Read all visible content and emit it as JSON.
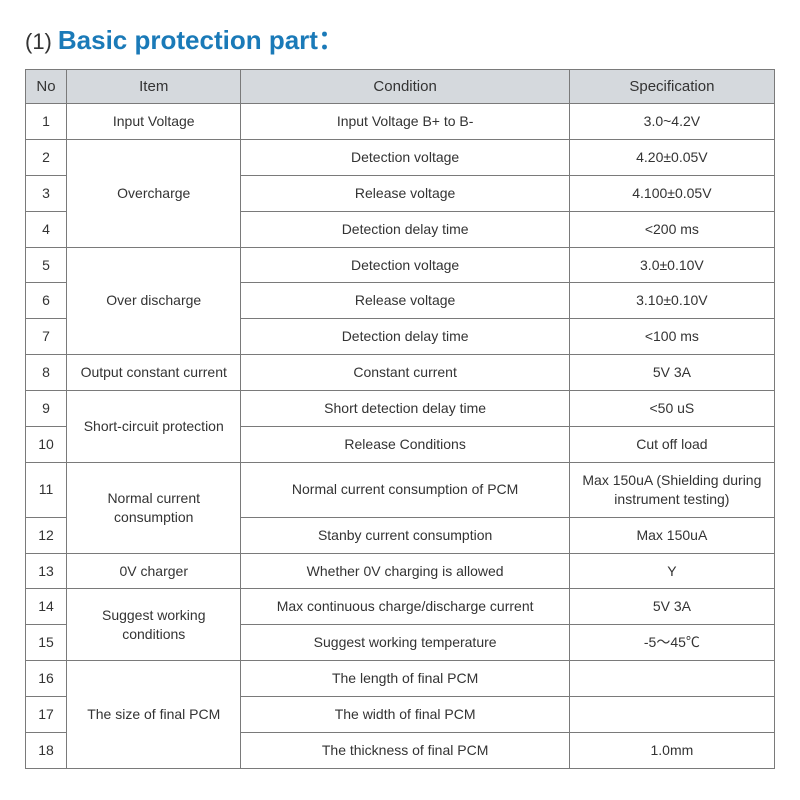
{
  "title_prefix": "(1)",
  "title": "Basic protection part：",
  "title_color": "#1a7ab8",
  "header_bg": "#d5d9dd",
  "border_color": "#7a7a7a",
  "columns": [
    "No",
    "Item",
    "Condition",
    "Specification"
  ],
  "rows": [
    {
      "no": "1",
      "item": "Input Voltage",
      "cond": "Input Voltage B+ to B-",
      "spec": "3.0~4.2V"
    },
    {
      "no": "2",
      "item": "",
      "cond": "Detection voltage",
      "spec": "4.20±0.05V"
    },
    {
      "no": "3",
      "item": "Overcharge",
      "cond": "Release voltage",
      "spec": "4.100±0.05V"
    },
    {
      "no": "4",
      "item": "",
      "cond": "Detection delay time",
      "spec": "<200 ms"
    },
    {
      "no": "5",
      "item": "",
      "cond": "Detection voltage",
      "spec": "3.0±0.10V"
    },
    {
      "no": "6",
      "item": "Over discharge",
      "cond": "Release voltage",
      "spec": "3.10±0.10V"
    },
    {
      "no": "7",
      "item": "",
      "cond": "Detection delay time",
      "spec": "<100 ms"
    },
    {
      "no": "8",
      "item": "Output  constant current",
      "cond": "Constant current",
      "spec": "5V 3A"
    },
    {
      "no": "9",
      "item": "",
      "cond": "Short detection delay time",
      "spec": "<50 uS"
    },
    {
      "no": "10",
      "item": "Short-circuit protection",
      "cond": "Release Conditions",
      "spec": "Cut off load"
    },
    {
      "no": "11",
      "item": "",
      "cond": "Normal current consumption of PCM",
      "spec": "Max 150uA (Shielding during instrument testing)"
    },
    {
      "no": "12",
      "item": "Normal current consumption",
      "cond": "Stanby current consumption",
      "spec": "Max 150uA"
    },
    {
      "no": "13",
      "item": "0V charger",
      "cond": "Whether 0V charging is allowed",
      "spec": "Y"
    },
    {
      "no": "14",
      "item": "",
      "cond": "Max continuous charge/discharge current",
      "spec": "5V 3A"
    },
    {
      "no": "15",
      "item": "Suggest working conditions",
      "cond": "Suggest working temperature",
      "spec": "-5～45℃"
    },
    {
      "no": "16",
      "item": "",
      "cond": "The length of final PCM",
      "spec": ""
    },
    {
      "no": "17",
      "item": "The size of final PCM",
      "cond": "The width of final PCM",
      "spec": ""
    },
    {
      "no": "18",
      "item": "",
      "cond": "The thickness of final PCM",
      "spec": "1.0mm"
    }
  ],
  "item_groups": [
    {
      "start": 0,
      "span": 1,
      "label_row": 0
    },
    {
      "start": 1,
      "span": 3,
      "label_row": 2
    },
    {
      "start": 4,
      "span": 3,
      "label_row": 5
    },
    {
      "start": 7,
      "span": 1,
      "label_row": 7
    },
    {
      "start": 8,
      "span": 2,
      "label_row": 9
    },
    {
      "start": 10,
      "span": 2,
      "label_row": 11
    },
    {
      "start": 12,
      "span": 1,
      "label_row": 12
    },
    {
      "start": 13,
      "span": 2,
      "label_row": 14
    },
    {
      "start": 15,
      "span": 3,
      "label_row": 16
    }
  ]
}
